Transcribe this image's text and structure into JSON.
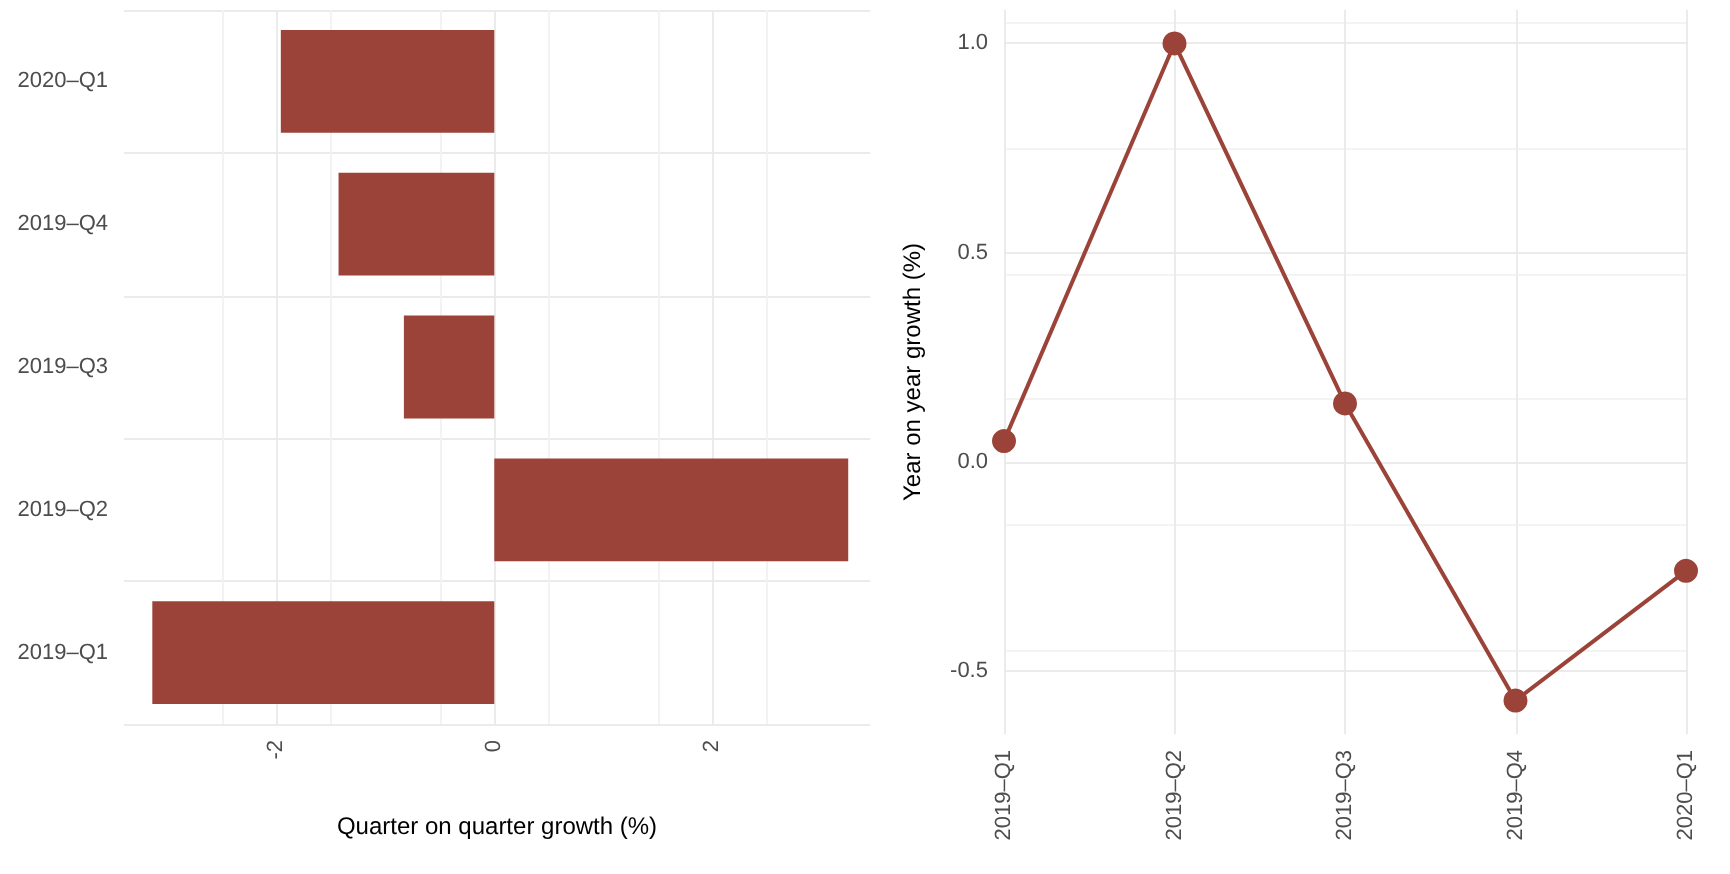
{
  "chart_data": [
    {
      "type": "bar",
      "orientation": "horizontal",
      "xlabel": "Quarter on quarter growth (%)",
      "categories": [
        "2020–Q1",
        "2019–Q4",
        "2019–Q3",
        "2019–Q2",
        "2019–Q1"
      ],
      "values": [
        -1.96,
        -1.43,
        -0.83,
        3.25,
        -3.14
      ],
      "color": "#9b4338",
      "xlim": [
        -3.4,
        3.45
      ],
      "xticks": [
        -2,
        0,
        2
      ],
      "grid": true
    },
    {
      "type": "line",
      "ylabel": "Year on year growth (%)",
      "categories": [
        "2019–Q1",
        "2019–Q2",
        "2019–Q3",
        "2019–Q4",
        "2020–Q1"
      ],
      "values": [
        0.05,
        1.0,
        0.14,
        -0.57,
        -0.26
      ],
      "color": "#9b4338",
      "ylim": [
        -0.65,
        1.08
      ],
      "yticks": [
        {
          "value": -0.5,
          "label": "-0.5"
        },
        {
          "value": 0,
          "label": "0.0"
        },
        {
          "value": 0.5,
          "label": "0.5"
        },
        {
          "value": 1,
          "label": "1.0"
        }
      ],
      "grid": true,
      "marker": "circle",
      "line_style": "solid"
    }
  ]
}
